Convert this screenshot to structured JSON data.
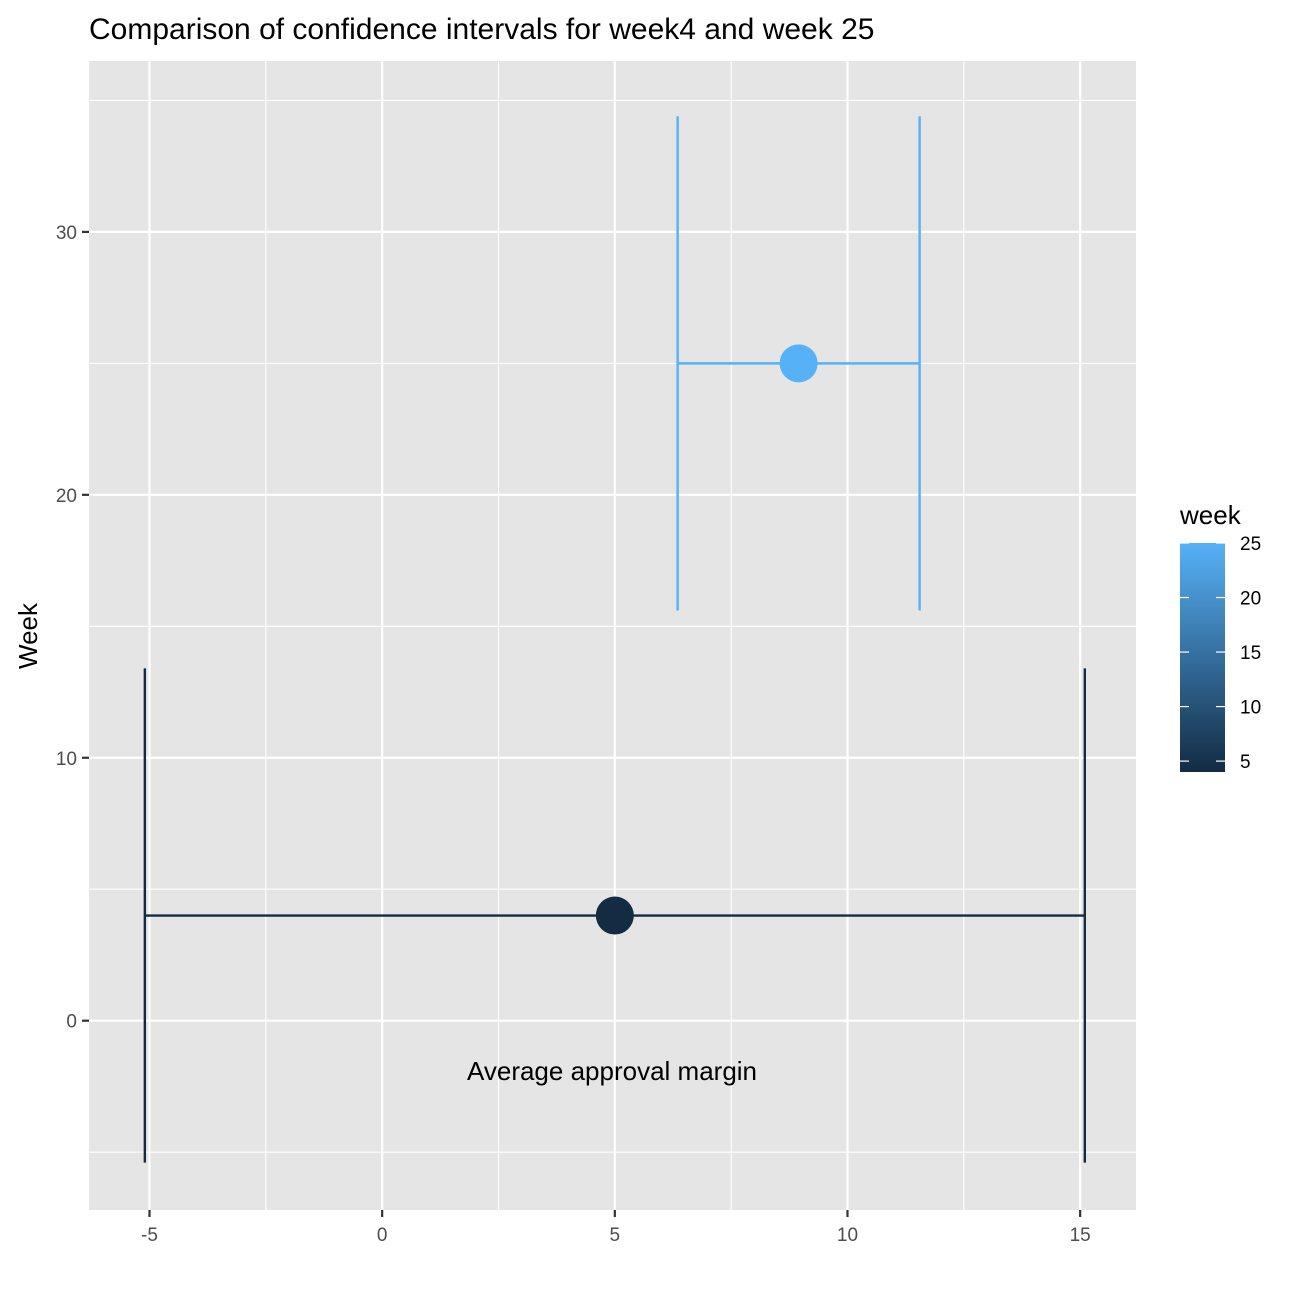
{
  "chart_data": {
    "type": "scatter",
    "title": "Comparison of confidence intervals for week4 and week 25",
    "xlabel": "Average approval margin",
    "ylabel": "Week",
    "xlim": [
      -6.3,
      16.2
    ],
    "ylim": [
      -7.2,
      36.5
    ],
    "x_ticks": [
      -5,
      0,
      5,
      10,
      15
    ],
    "y_ticks": [
      0,
      10,
      20,
      30
    ],
    "grid": true,
    "points": [
      {
        "week": 4,
        "x": 5.0,
        "y": 4,
        "ci_low": -5.1,
        "ci_high": 15.1,
        "bar_half_height": 9.4
      },
      {
        "week": 25,
        "x": 8.95,
        "y": 25,
        "ci_low": 6.35,
        "ci_high": 11.55,
        "bar_half_height": 9.4
      }
    ],
    "legend": {
      "title": "week",
      "position": "right",
      "type": "colorbar",
      "range": [
        4,
        25
      ],
      "ticks": [
        5,
        10,
        15,
        20,
        25
      ],
      "color_low": "#132B43",
      "color_high": "#56B1F7"
    },
    "colors": {
      "panel_background": "#E5E5E5",
      "grid_line": "#FFFFFF",
      "week4": "#132B43",
      "week25": "#56B1F7"
    }
  }
}
